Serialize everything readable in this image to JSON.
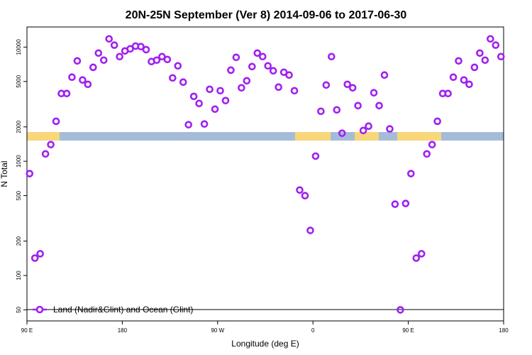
{
  "chart_data": {
    "type": "scatter",
    "title": "20N-25N September (Ver 8)   2014-09-06 to 2017-06-30",
    "xlabel": "Longitude (deg E)",
    "ylabel": "N Total",
    "yscale": "log",
    "xlim": [
      90,
      540
    ],
    "ylim": [
      40,
      15000
    ],
    "xticks": [
      {
        "value": 90,
        "label": "90 E"
      },
      180,
      {
        "value": 270,
        "label": "90 W"
      },
      {
        "value": 360,
        "label": "0"
      },
      {
        "value": 450,
        "label": "90 E"
      },
      {
        "value": 540,
        "label": "180"
      }
    ],
    "yticks": [
      50,
      100,
      200,
      500,
      1000,
      2000,
      5000,
      10000
    ],
    "legend": "bottom-left",
    "series": [
      {
        "name": "Land (Nadir&Glint) and Ocean (Glint)",
        "color": "#a020f0",
        "x": [
          92.5,
          97.5,
          102.5,
          107.5,
          112.5,
          117.5,
          122.5,
          127.5,
          132.5,
          137.5,
          142.5,
          147.5,
          152.5,
          157.5,
          162.5,
          167.5,
          172.5,
          177.5,
          182.5,
          187.5,
          192.5,
          197.5,
          202.5,
          207.5,
          212.5,
          217.5,
          222.5,
          227.5,
          232.5,
          237.5,
          242.5,
          247.5,
          252.5,
          257.5,
          262.5,
          267.5,
          272.5,
          277.5,
          282.5,
          287.5,
          292.5,
          297.5,
          302.5,
          307.5,
          312.5,
          317.5,
          322.5,
          327.5,
          332.5,
          337.5,
          342.5,
          347.5,
          352.5,
          357.5,
          362.5,
          367.5,
          372.5,
          377.5,
          382.5,
          387.5,
          392.5,
          397.5,
          402.5,
          407.5,
          412.5,
          417.5,
          422.5,
          427.5,
          432.5,
          437.5,
          442.5,
          447.5,
          452.5,
          457.5,
          462.5,
          467.5,
          472.5,
          477.5,
          482.5,
          487.5,
          492.5,
          497.5,
          502.5,
          507.5,
          512.5,
          517.5,
          522.5,
          527.5,
          532.5,
          537.5
        ],
        "values": [
          780,
          142,
          155,
          1160,
          1400,
          2240,
          3920,
          3920,
          5450,
          7570,
          5150,
          4720,
          6650,
          8860,
          7680,
          11800,
          10400,
          8250,
          9250,
          9650,
          10200,
          10100,
          9500,
          7470,
          7680,
          8250,
          7790,
          5370,
          6850,
          4930,
          2090,
          3700,
          3210,
          2120,
          4270,
          2860,
          4150,
          3400,
          6280,
          8130,
          4400,
          5070,
          6750,
          8860,
          8250,
          6850,
          6200,
          4460,
          6020,
          5690,
          4150,
          560,
          500,
          248,
          1110,
          2740,
          4650,
          8250,
          2820,
          1760,
          4720,
          4400,
          3070,
          1860,
          2030,
          3980,
          3070,
          5690,
          1920,
          421,
          50,
          427,
          780,
          142,
          155,
          1160,
          1400,
          2240,
          3920,
          3920,
          5450,
          7570,
          5150,
          4720,
          6650,
          8860,
          7680,
          11800,
          10400,
          8250
        ]
      }
    ]
  }
}
